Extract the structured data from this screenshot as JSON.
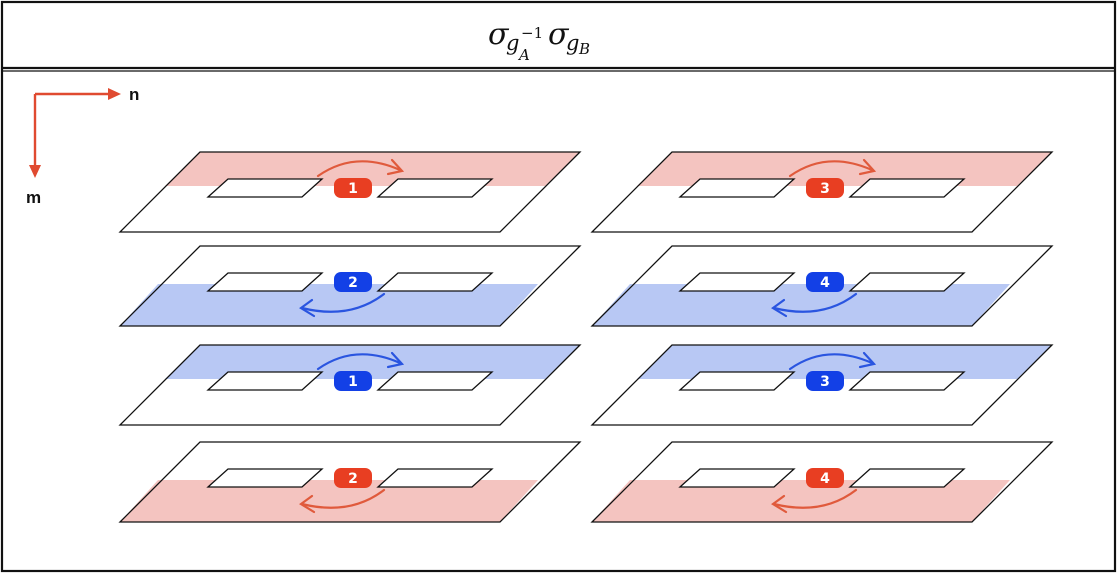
{
  "title": {
    "main": "σ",
    "sub1": "g",
    "sub1_sub": "A",
    "sub1_sup": "−1",
    "main2": "σ",
    "sub2": "g",
    "sub2_sub": "B"
  },
  "axes": {
    "n_label": "n",
    "m_label": "m",
    "color": "#e04a30"
  },
  "colors": {
    "red_band": "#f4c4c0",
    "blue_band": "#b8c8f4",
    "red_badge": "#e83e22",
    "blue_badge": "#1340e6",
    "red_arrow": "#e05a3c",
    "blue_arrow": "#2a55e0"
  },
  "panels": [
    {
      "column": "left",
      "row": 1,
      "band": "top",
      "color": "red",
      "badge": "1",
      "arrow": "clockwise-top"
    },
    {
      "column": "left",
      "row": 2,
      "band": "bottom",
      "color": "blue",
      "badge": "2",
      "arrow": "counter-bottom"
    },
    {
      "column": "left",
      "row": 3,
      "band": "top",
      "color": "blue",
      "badge": "1",
      "arrow": "clockwise-top"
    },
    {
      "column": "left",
      "row": 4,
      "band": "bottom",
      "color": "red",
      "badge": "2",
      "arrow": "counter-bottom"
    },
    {
      "column": "right",
      "row": 1,
      "band": "top",
      "color": "red",
      "badge": "3",
      "arrow": "clockwise-top"
    },
    {
      "column": "right",
      "row": 2,
      "band": "bottom",
      "color": "blue",
      "badge": "4",
      "arrow": "counter-bottom"
    },
    {
      "column": "right",
      "row": 3,
      "band": "top",
      "color": "blue",
      "badge": "3",
      "arrow": "clockwise-top"
    },
    {
      "column": "right",
      "row": 4,
      "band": "bottom",
      "color": "red",
      "badge": "4",
      "arrow": "counter-bottom"
    }
  ]
}
